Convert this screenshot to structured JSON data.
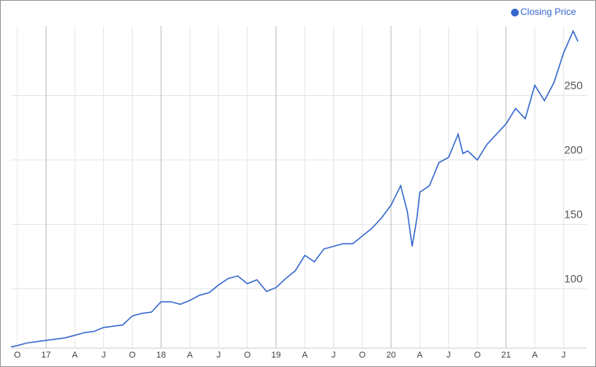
{
  "chart_data": {
    "type": "line",
    "legend": "top-right",
    "grid": true,
    "xlim": [
      -0.66,
      59.4
    ],
    "xticks": [
      {
        "value": 0,
        "label": "O"
      },
      {
        "value": 3,
        "label": "17"
      },
      {
        "value": 6,
        "label": "A"
      },
      {
        "value": 9,
        "label": "J"
      },
      {
        "value": 12,
        "label": "O"
      },
      {
        "value": 15,
        "label": "18"
      },
      {
        "value": 18,
        "label": "A"
      },
      {
        "value": 21,
        "label": "J"
      },
      {
        "value": 24,
        "label": "O"
      },
      {
        "value": 27,
        "label": "19"
      },
      {
        "value": 30,
        "label": "A"
      },
      {
        "value": 33,
        "label": "J"
      },
      {
        "value": 36,
        "label": "O"
      },
      {
        "value": 39,
        "label": "20"
      },
      {
        "value": 42,
        "label": "A"
      },
      {
        "value": 45,
        "label": "J"
      },
      {
        "value": 48,
        "label": "O"
      },
      {
        "value": 51,
        "label": "21"
      },
      {
        "value": 54,
        "label": "A"
      },
      {
        "value": 57,
        "label": "J"
      }
    ],
    "ylim": [
      54,
      304
    ],
    "yticks": [
      100,
      150,
      200,
      250
    ],
    "x": [
      -0.66,
      0,
      1,
      2,
      3,
      4,
      5,
      6,
      7,
      8,
      9,
      10,
      11,
      12,
      13,
      14,
      15,
      16,
      17,
      18,
      19,
      20,
      21,
      22,
      23,
      24,
      25,
      26,
      27,
      28,
      29,
      30,
      31,
      32,
      33,
      34,
      35,
      36,
      37,
      38,
      39,
      40,
      40.7,
      41.2,
      41.7,
      42,
      43,
      44,
      45,
      46,
      46.5,
      47,
      48,
      49,
      50,
      51,
      52,
      53,
      54,
      55,
      56,
      57,
      58,
      58.5
    ],
    "series": [
      {
        "name": "Closing Price",
        "color": "#3366cc",
        "values": [
          55,
          56,
          58,
          59,
          60,
          61,
          62,
          64,
          66,
          67,
          70,
          71,
          72,
          79,
          81,
          82,
          90,
          90,
          88,
          91,
          95,
          97,
          103,
          108,
          110,
          104,
          107,
          98,
          101,
          108,
          114,
          126,
          121,
          131,
          133,
          135,
          135,
          141,
          147,
          155,
          165,
          180,
          160,
          133,
          155,
          175,
          180,
          198,
          202,
          220,
          205,
          207,
          200,
          212,
          220,
          228,
          240,
          232,
          258,
          246,
          260,
          283,
          300,
          292
        ]
      }
    ]
  }
}
